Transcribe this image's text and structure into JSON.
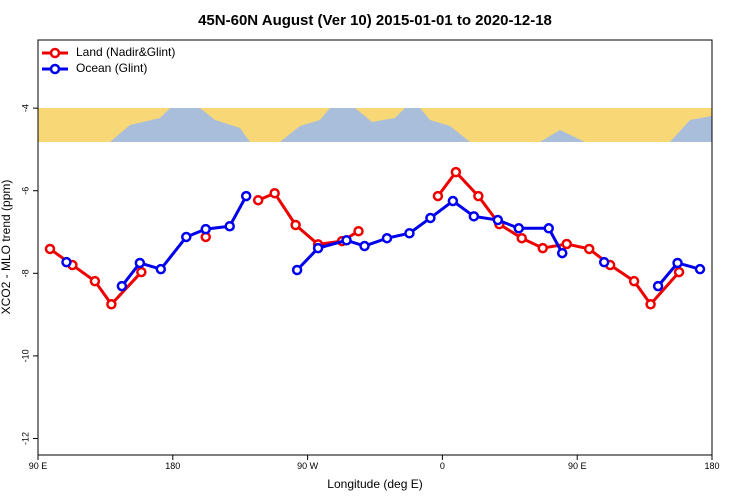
{
  "chart_data": {
    "type": "line",
    "title": "45N-60N August (Ver 10)   2015-01-01 to 2020-12-18",
    "xlabel": "Longitude (deg E)",
    "ylabel": "XCO2 - MLO trend (ppm)",
    "xlim": [
      90,
      540
    ],
    "ylim": [
      -12.4,
      -2.35
    ],
    "xticks": [
      {
        "value": 90,
        "label": "90 E"
      },
      {
        "value": 180,
        "label": "180"
      },
      {
        "value": 270,
        "label": "90 W"
      },
      {
        "value": 360,
        "label": "0"
      },
      {
        "value": 450,
        "label": "90 E"
      },
      {
        "value": 540,
        "label": "180"
      }
    ],
    "yticks": [
      -4,
      -6,
      -8,
      -10,
      -12
    ],
    "legend": "top-left",
    "series": [
      {
        "name": "Land (Nadir&Glint)",
        "color": "#ee0000",
        "x": [
          98,
          113,
          128,
          139,
          159,
          null,
          202,
          null,
          237,
          248,
          262,
          277,
          293,
          304,
          null,
          357,
          369,
          384,
          398,
          413,
          427,
          443,
          458,
          472,
          488,
          499,
          518
        ],
        "values": [
          -7.41,
          -7.8,
          -8.19,
          -8.75,
          -7.97,
          null,
          -7.12,
          null,
          -6.23,
          -6.06,
          -6.83,
          -7.3,
          -7.22,
          -6.98,
          null,
          -6.13,
          -5.55,
          -6.13,
          -6.81,
          -7.15,
          -7.39,
          -7.29,
          -7.41,
          -7.8,
          -8.19,
          -8.75,
          -7.97
        ]
      },
      {
        "name": "Ocean (Glint)",
        "color": "#0000ee",
        "x": [
          109,
          null,
          146,
          158,
          172,
          189,
          202,
          218,
          229,
          null,
          263,
          277,
          296,
          308,
          323,
          338,
          352,
          367,
          381,
          397,
          411,
          431,
          440,
          null,
          468,
          null,
          504,
          517,
          532
        ],
        "values": [
          -7.73,
          null,
          -8.31,
          -7.75,
          -7.9,
          -7.12,
          -6.93,
          -6.86,
          -6.13,
          null,
          -7.92,
          -7.39,
          -7.2,
          -7.34,
          -7.15,
          -7.03,
          -6.66,
          -6.25,
          -6.62,
          -6.71,
          -6.91,
          -6.91,
          -7.51,
          null,
          -7.73,
          null,
          -8.31,
          -7.75,
          -7.9
        ]
      }
    ]
  }
}
